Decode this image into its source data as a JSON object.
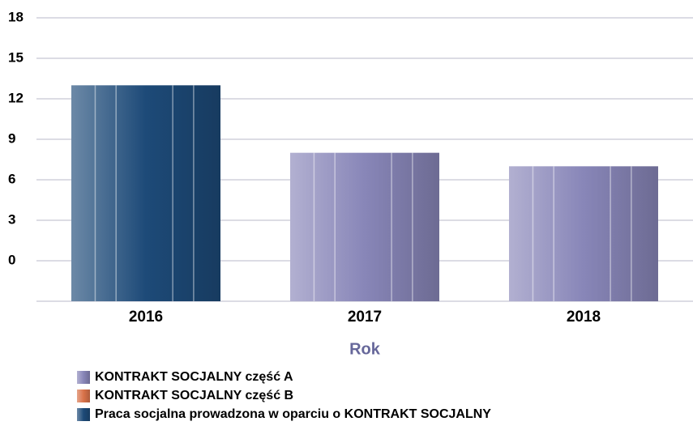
{
  "chart_data": {
    "type": "bar",
    "x_label": "Rok",
    "categories": [
      "2016",
      "2017",
      "2018"
    ],
    "series": [
      {
        "name": "KONTRAKT SOCJALNY część A",
        "color": "#8886b8",
        "values": [
          null,
          8,
          7
        ]
      },
      {
        "name": "KONTRAKT SOCJALNY część B",
        "color": "#d9734a",
        "values": [
          null,
          null,
          null
        ]
      },
      {
        "name": "Praca socjalna prowadzona w oparciu o KONTRAKT SOCJALNY",
        "color": "#1d4a78",
        "values": [
          13,
          null,
          null
        ]
      }
    ],
    "ylim": [
      -3,
      18
    ],
    "yticks": [
      0,
      3,
      6,
      9,
      12,
      15,
      18
    ],
    "grid": true
  }
}
